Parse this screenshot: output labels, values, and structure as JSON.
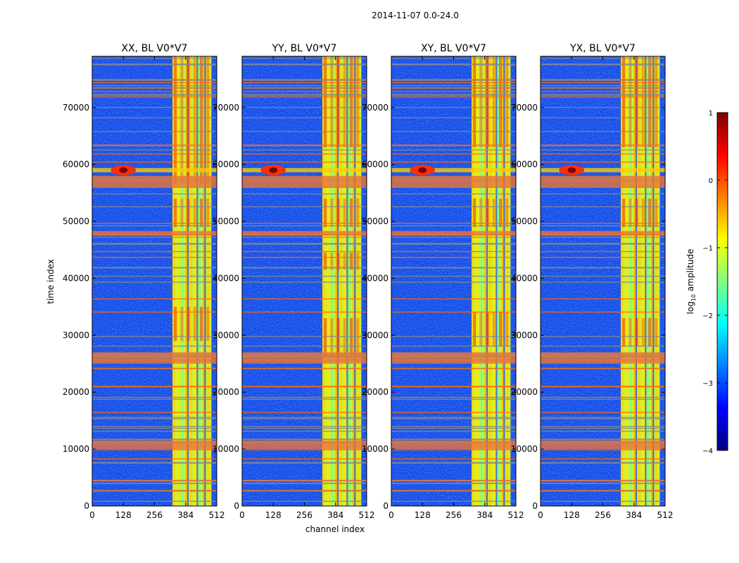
{
  "figure": {
    "suptitle": "2014-11-07 0.0-24.0",
    "xlabel": "channel index",
    "ylabel": "time index"
  },
  "chart_data": [
    {
      "type": "heatmap",
      "title": "XX, BL V0*V7",
      "xlim": [
        0,
        512
      ],
      "ylim": [
        0,
        79000
      ],
      "xticks": [
        0,
        128,
        256,
        384,
        512
      ],
      "yticks": [
        0,
        10000,
        20000,
        30000,
        40000,
        50000,
        60000,
        70000
      ],
      "bright_band_channels": [
        330,
        490
      ],
      "hot_rows": [
        [
          56500,
          79000
        ],
        [
          29000,
          35000
        ],
        [
          49000,
          54000
        ]
      ]
    },
    {
      "type": "heatmap",
      "title": "YY, BL V0*V7",
      "xlim": [
        0,
        512
      ],
      "ylim": [
        0,
        79000
      ],
      "xticks": [
        0,
        128,
        256,
        384,
        512
      ],
      "yticks": [
        0,
        10000,
        20000,
        30000,
        40000,
        50000,
        60000,
        70000
      ],
      "bright_band_channels": [
        330,
        490
      ],
      "hot_rows": [
        [
          63000,
          79000
        ],
        [
          26000,
          33000
        ],
        [
          41500,
          44500
        ],
        [
          49000,
          54000
        ]
      ]
    },
    {
      "type": "heatmap",
      "title": "XY, BL V0*V7",
      "xlim": [
        0,
        512
      ],
      "ylim": [
        0,
        79000
      ],
      "xticks": [
        0,
        128,
        256,
        384,
        512
      ],
      "yticks": [
        0,
        10000,
        20000,
        30000,
        40000,
        50000,
        60000,
        70000
      ],
      "bright_band_channels": [
        330,
        490
      ],
      "hot_rows": [
        [
          63000,
          79000
        ],
        [
          28000,
          34000
        ],
        [
          49000,
          54000
        ]
      ]
    },
    {
      "type": "heatmap",
      "title": "YX, BL V0*V7",
      "xlim": [
        0,
        512
      ],
      "ylim": [
        0,
        79000
      ],
      "xticks": [
        0,
        128,
        256,
        384,
        512
      ],
      "yticks": [
        0,
        10000,
        20000,
        30000,
        40000,
        50000,
        60000,
        70000
      ],
      "bright_band_channels": [
        330,
        490
      ],
      "hot_rows": [
        [
          63000,
          79000
        ],
        [
          28000,
          33000
        ],
        [
          49000,
          54000
        ]
      ]
    }
  ],
  "colorbar": {
    "label_prefix": "log",
    "label_sub": "10",
    "label_suffix": " amplitude",
    "min": -4,
    "max": 1,
    "ticks": [
      1,
      0,
      -1,
      -2,
      -3,
      -4
    ],
    "tick_labels": [
      "1",
      "0",
      "−1",
      "−2",
      "−3",
      "−4"
    ],
    "colormap": "jet"
  },
  "colors": {
    "background": "#ffffff",
    "axis": "#000000"
  }
}
